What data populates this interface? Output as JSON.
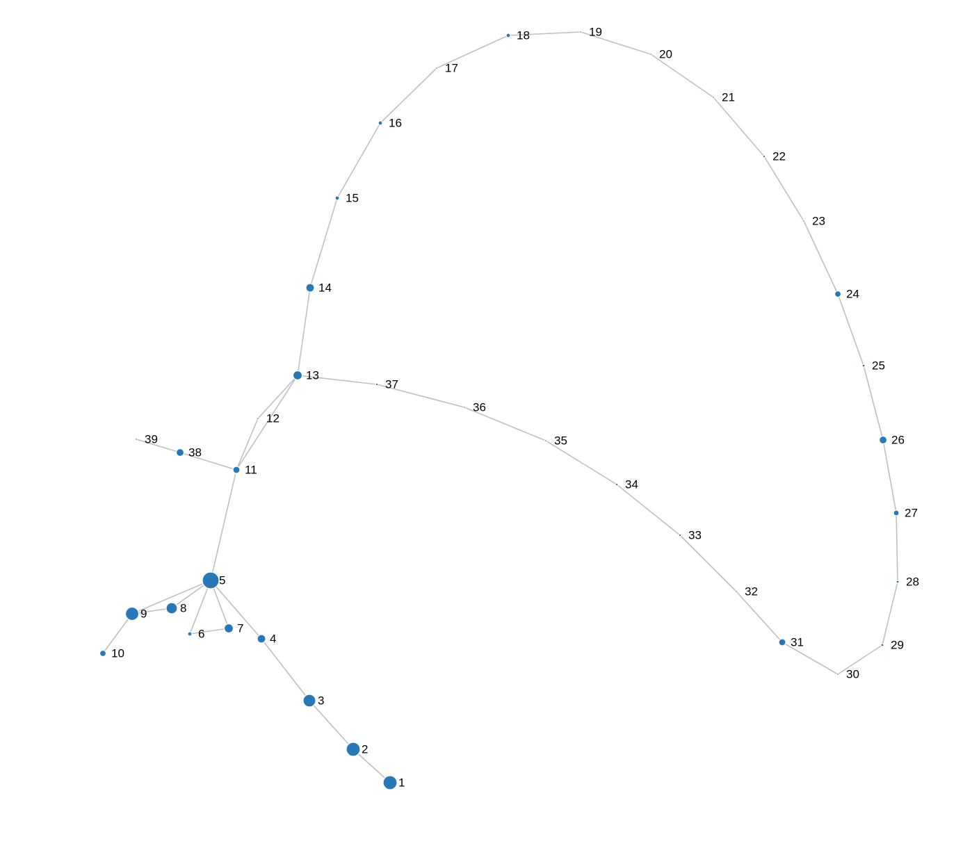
{
  "graph": {
    "node_color": "#2878b8",
    "edge_color": "#bfbfbf",
    "label_color": "#000000",
    "nodes": [
      {
        "id": "1",
        "label": "1"
      },
      {
        "id": "2",
        "label": "2"
      },
      {
        "id": "3",
        "label": "3"
      },
      {
        "id": "4",
        "label": "4"
      },
      {
        "id": "5",
        "label": "5"
      },
      {
        "id": "6",
        "label": "6"
      },
      {
        "id": "7",
        "label": "7"
      },
      {
        "id": "8",
        "label": "8"
      },
      {
        "id": "9",
        "label": "9"
      },
      {
        "id": "10",
        "label": "10"
      },
      {
        "id": "11",
        "label": "11"
      },
      {
        "id": "12",
        "label": "12"
      },
      {
        "id": "13",
        "label": "13"
      },
      {
        "id": "14",
        "label": "14"
      },
      {
        "id": "15",
        "label": "15"
      },
      {
        "id": "16",
        "label": "16"
      },
      {
        "id": "17",
        "label": "17"
      },
      {
        "id": "18",
        "label": "18"
      },
      {
        "id": "19",
        "label": "19"
      },
      {
        "id": "20",
        "label": "20"
      },
      {
        "id": "21",
        "label": "21"
      },
      {
        "id": "22",
        "label": "22"
      },
      {
        "id": "23",
        "label": "23"
      },
      {
        "id": "24",
        "label": "24"
      },
      {
        "id": "25",
        "label": "25"
      },
      {
        "id": "26",
        "label": "26"
      },
      {
        "id": "27",
        "label": "27"
      },
      {
        "id": "28",
        "label": "28"
      },
      {
        "id": "29",
        "label": "29"
      },
      {
        "id": "30",
        "label": "30"
      },
      {
        "id": "31",
        "label": "31"
      },
      {
        "id": "32",
        "label": "32"
      },
      {
        "id": "33",
        "label": "33"
      },
      {
        "id": "34",
        "label": "34"
      },
      {
        "id": "35",
        "label": "35"
      },
      {
        "id": "36",
        "label": "36"
      },
      {
        "id": "37",
        "label": "37"
      },
      {
        "id": "38",
        "label": "38"
      },
      {
        "id": "39",
        "label": "39"
      }
    ],
    "edges": [
      [
        "1",
        "2"
      ],
      [
        "2",
        "3"
      ],
      [
        "3",
        "4"
      ],
      [
        "4",
        "5"
      ],
      [
        "5",
        "6"
      ],
      [
        "5",
        "7"
      ],
      [
        "6",
        "7"
      ],
      [
        "5",
        "8"
      ],
      [
        "5",
        "9"
      ],
      [
        "8",
        "9"
      ],
      [
        "9",
        "10"
      ],
      [
        "5",
        "11"
      ],
      [
        "11",
        "12"
      ],
      [
        "12",
        "13"
      ],
      [
        "11",
        "13"
      ],
      [
        "11",
        "38"
      ],
      [
        "38",
        "39"
      ],
      [
        "13",
        "14"
      ],
      [
        "14",
        "15"
      ],
      [
        "15",
        "16"
      ],
      [
        "16",
        "17"
      ],
      [
        "17",
        "18"
      ],
      [
        "18",
        "19"
      ],
      [
        "19",
        "20"
      ],
      [
        "20",
        "21"
      ],
      [
        "21",
        "22"
      ],
      [
        "22",
        "23"
      ],
      [
        "23",
        "24"
      ],
      [
        "24",
        "25"
      ],
      [
        "25",
        "26"
      ],
      [
        "26",
        "27"
      ],
      [
        "27",
        "28"
      ],
      [
        "28",
        "29"
      ],
      [
        "29",
        "30"
      ],
      [
        "30",
        "31"
      ],
      [
        "31",
        "32"
      ],
      [
        "32",
        "33"
      ],
      [
        "33",
        "34"
      ],
      [
        "34",
        "35"
      ],
      [
        "35",
        "36"
      ],
      [
        "36",
        "37"
      ],
      [
        "37",
        "13"
      ]
    ]
  }
}
